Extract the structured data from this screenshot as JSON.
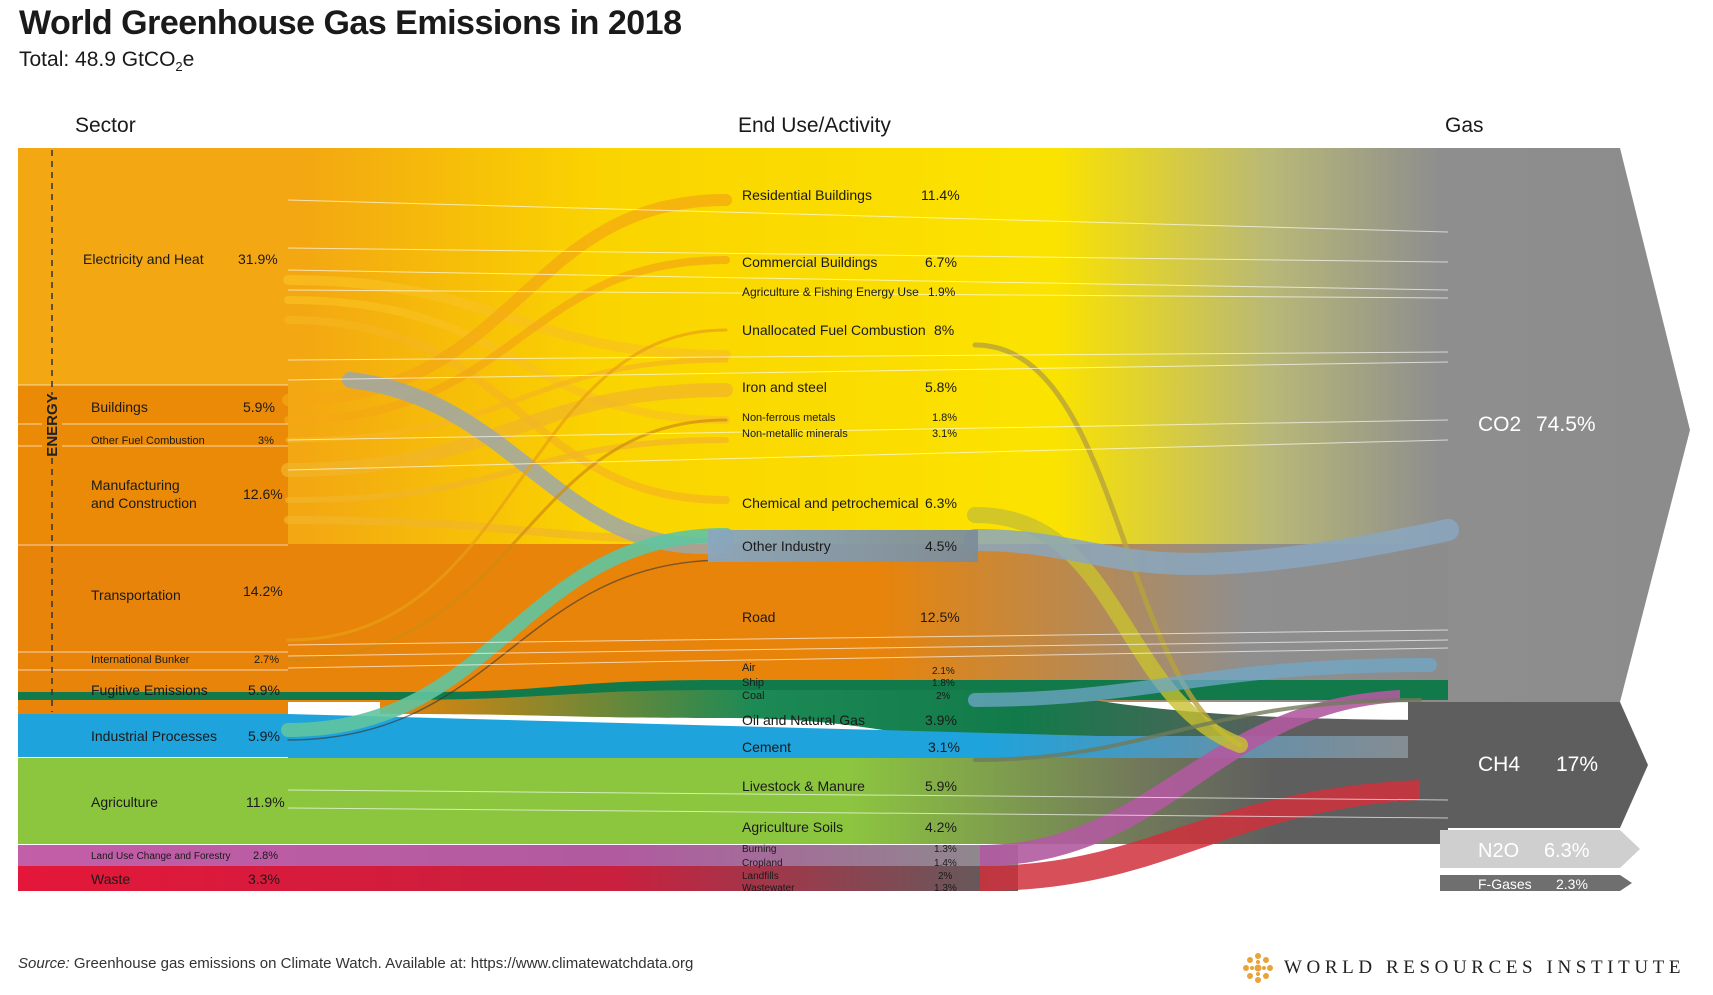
{
  "header": {
    "title": "World Greenhouse Gas Emissions in 2018",
    "subtitle_prefix": "Total: 48.9 GtCO",
    "subtitle_sub": "2",
    "subtitle_suffix": "e"
  },
  "columns": {
    "sector": "Sector",
    "end_use": "End Use/Activity",
    "gas": "Gas"
  },
  "energy_label": "ENERGY",
  "source": {
    "label": "Source:",
    "text": " Greenhouse gas emissions on Climate Watch. Available at: https://www.climatewatchdata.org"
  },
  "logo": {
    "text": "WORLD RESOURCES INSTITUTE",
    "color": "#e8a33a"
  },
  "chart_data": {
    "type": "sankey",
    "unit": "% of total GHG emissions",
    "sectors": [
      {
        "name": "Electricity and Heat",
        "value": "31.9%",
        "share": 31.9,
        "color": "#f3a712",
        "group": "energy"
      },
      {
        "name": "Buildings",
        "value": "5.9%",
        "share": 5.9,
        "color": "#ea8a07",
        "group": "energy"
      },
      {
        "name": "Other Fuel Combustion",
        "value": "3%",
        "share": 3.0,
        "color": "#ea8a07",
        "group": "energy"
      },
      {
        "name": "Manufacturing and Construction",
        "value": "12.6%",
        "share": 12.6,
        "color": "#ea8a07",
        "group": "energy"
      },
      {
        "name": "Transportation",
        "value": "14.2%",
        "share": 14.2,
        "color": "#e8840a",
        "group": "energy"
      },
      {
        "name": "International Bunker",
        "value": "2.7%",
        "share": 2.7,
        "color": "#e8840a",
        "group": "energy"
      },
      {
        "name": "Fugitive Emissions",
        "value": "5.9%",
        "share": 5.9,
        "color": "#e8840a",
        "group": "energy"
      },
      {
        "name": "Industrial Processes",
        "value": "5.9%",
        "share": 5.9,
        "color": "#1fa3dc",
        "group": "other"
      },
      {
        "name": "Agriculture",
        "value": "11.9%",
        "share": 11.9,
        "color": "#8cc63f",
        "group": "other"
      },
      {
        "name": "Land Use Change and Forestry",
        "value": "2.8%",
        "share": 2.8,
        "color": "#c35ea8",
        "group": "other"
      },
      {
        "name": "Waste",
        "value": "3.3%",
        "share": 3.3,
        "color": "#e4173a",
        "group": "other"
      }
    ],
    "end_uses": [
      {
        "name": "Residential Buildings",
        "value": "11.4%",
        "share": 11.4
      },
      {
        "name": "Commercial Buildings",
        "value": "6.7%",
        "share": 6.7
      },
      {
        "name": "Agriculture & Fishing Energy Use",
        "value": "1.9%",
        "share": 1.9
      },
      {
        "name": "Unallocated Fuel Combustion",
        "value": "8%",
        "share": 8.0
      },
      {
        "name": "Iron and steel",
        "value": "5.8%",
        "share": 5.8
      },
      {
        "name": "Non-ferrous metals",
        "value": "1.8%",
        "share": 1.8
      },
      {
        "name": "Non-metallic minerals",
        "value": "3.1%",
        "share": 3.1
      },
      {
        "name": "Chemical and petrochemical",
        "value": "6.3%",
        "share": 6.3
      },
      {
        "name": "Other Industry",
        "value": "4.5%",
        "share": 4.5
      },
      {
        "name": "Road",
        "value": "12.5%",
        "share": 12.5
      },
      {
        "name": "Air",
        "value": "2.1%",
        "share": 2.1
      },
      {
        "name": "Ship",
        "value": "1.8%",
        "share": 1.8
      },
      {
        "name": "Coal",
        "value": "2%",
        "share": 2.0
      },
      {
        "name": "Oil and Natural Gas",
        "value": "3.9%",
        "share": 3.9
      },
      {
        "name": "Cement",
        "value": "3.1%",
        "share": 3.1
      },
      {
        "name": "Livestock & Manure",
        "value": "5.9%",
        "share": 5.9
      },
      {
        "name": "Agriculture Soils",
        "value": "4.2%",
        "share": 4.2
      },
      {
        "name": "Burning",
        "value": "1.3%",
        "share": 1.3
      },
      {
        "name": "Cropland",
        "value": "1.4%",
        "share": 1.4
      },
      {
        "name": "Landfills",
        "value": "2%",
        "share": 2.0
      },
      {
        "name": "Wastewater",
        "value": "1.3%",
        "share": 1.3
      }
    ],
    "gases": [
      {
        "name": "CO2",
        "value": "74.5%",
        "share": 74.5,
        "color": "#8c8c8c"
      },
      {
        "name": "CH4",
        "value": "17%",
        "share": 17.0,
        "color": "#5e5e5e"
      },
      {
        "name": "N2O",
        "value": "6.3%",
        "share": 6.3,
        "color": "#c8c8c8"
      },
      {
        "name": "F-Gases",
        "value": "2.3%",
        "share": 2.3,
        "color": "#7a7a7a"
      }
    ]
  }
}
